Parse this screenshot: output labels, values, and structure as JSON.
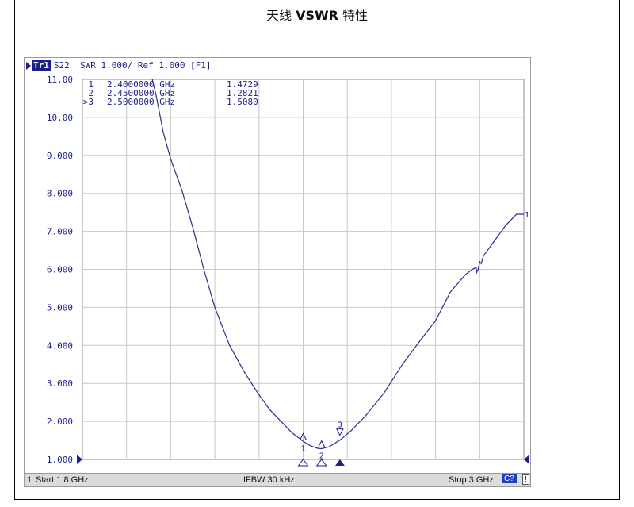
{
  "page": {
    "title_cn_left": "天线",
    "title_bold": "VSWR",
    "title_cn_right": "特性"
  },
  "header": {
    "trace_label": "Tr1",
    "text": "S22  SWR 1.000/ Ref 1.000 [F1]"
  },
  "status": {
    "channel": "1",
    "start": "Start 1.8 GHz",
    "ifbw": "IFBW 30 kHz",
    "stop": "Stop 3 GHz",
    "cal": "C?",
    "warn": "!"
  },
  "colors": {
    "trace": "#2a2f8c",
    "grid": "#c8c8c8",
    "axis_text": "#1b1f8a"
  },
  "chart_data": {
    "type": "line",
    "title": "",
    "xlabel": "",
    "ylabel": "",
    "xlim": [
      1.8,
      3.0
    ],
    "ylim": [
      1.0,
      11.0
    ],
    "y_ticks": [
      "11.00",
      "10.00",
      "9.000",
      "8.000",
      "7.000",
      "6.000",
      "5.000",
      "4.000",
      "3.000",
      "2.000",
      "1.000"
    ],
    "grid": true,
    "ref_value": 1.0,
    "series": [
      {
        "name": "S22 SWR",
        "x": [
          1.99,
          2.0,
          2.02,
          2.04,
          2.07,
          2.1,
          2.13,
          2.16,
          2.2,
          2.24,
          2.28,
          2.31,
          2.34,
          2.37,
          2.39,
          2.4,
          2.42,
          2.44,
          2.45,
          2.47,
          2.5,
          2.53,
          2.57,
          2.62,
          2.67,
          2.72,
          2.76,
          2.8,
          2.84,
          2.86,
          2.87,
          2.872,
          2.876,
          2.88,
          2.884,
          2.89,
          2.92,
          2.95,
          2.98,
          3.0
        ],
        "y": [
          11.0,
          10.6,
          9.6,
          8.9,
          8.1,
          7.1,
          6.0,
          5.0,
          4.0,
          3.3,
          2.7,
          2.3,
          2.0,
          1.7,
          1.55,
          1.473,
          1.36,
          1.29,
          1.282,
          1.33,
          1.508,
          1.75,
          2.15,
          2.75,
          3.5,
          4.15,
          4.65,
          5.4,
          5.85,
          6.0,
          6.05,
          5.92,
          6.0,
          6.2,
          6.15,
          6.35,
          6.75,
          7.15,
          7.45,
          7.45
        ]
      }
    ],
    "markers": [
      {
        "id": "1",
        "freq": "2.4000000 GHz",
        "value": "1.4729",
        "x": 2.4,
        "y": 1.4729
      },
      {
        "id": "2",
        "freq": "2.4500000 GHz",
        "value": "1.2821",
        "x": 2.45,
        "y": 1.2821
      },
      {
        "id": "3",
        "freq": "2.5000000 GHz",
        "value": "1.5080",
        "x": 2.5,
        "y": 1.508
      }
    ],
    "marker_table": [
      {
        "prefix": "",
        "id": "1",
        "freq": "2.4000000 GHz",
        "value": "1.4729"
      },
      {
        "prefix": "",
        "id": "2",
        "freq": "2.4500000 GHz",
        "value": "1.2821"
      },
      {
        "prefix": ">",
        "id": "3",
        "freq": "2.5000000 GHz",
        "value": "1.5080"
      }
    ],
    "trace_end_label": "1"
  }
}
